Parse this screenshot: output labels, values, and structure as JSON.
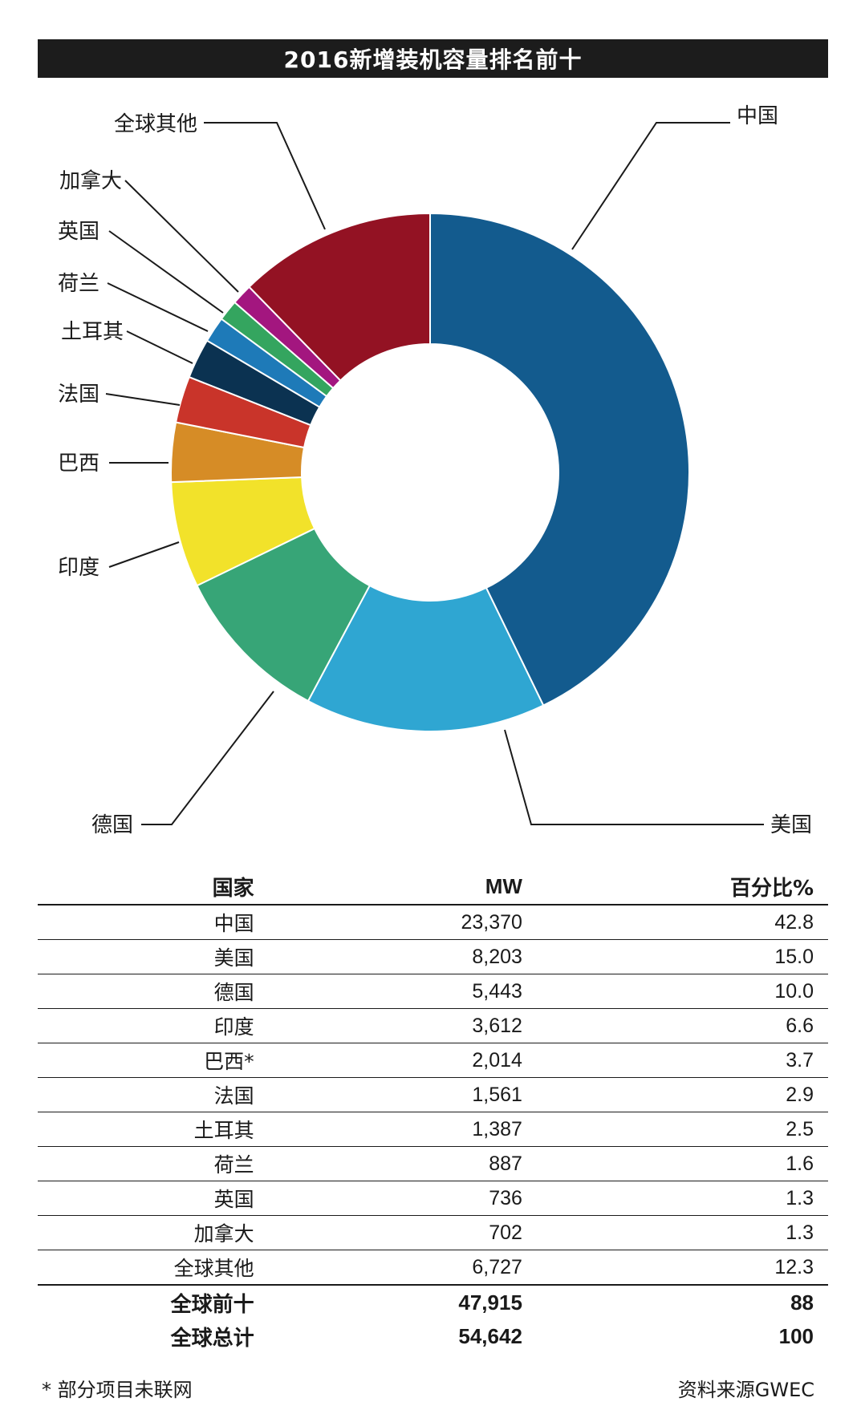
{
  "chart_data": {
    "type": "pie",
    "title": "2016新增装机容量排名前十",
    "table_headers": [
      "国家",
      "MW",
      "百分比%"
    ],
    "slices": [
      {
        "label": "中国",
        "table_label": "中国",
        "mw": "23,370",
        "pct": 42.8,
        "pct_text": "42.8",
        "color": "#135b8e"
      },
      {
        "label": "美国",
        "table_label": "美国",
        "mw": "8,203",
        "pct": 15.0,
        "pct_text": "15.0",
        "color": "#2fa6d2"
      },
      {
        "label": "德国",
        "table_label": "德国",
        "mw": "5,443",
        "pct": 10.0,
        "pct_text": "10.0",
        "color": "#37a577"
      },
      {
        "label": "印度",
        "table_label": "印度",
        "mw": "3,612",
        "pct": 6.6,
        "pct_text": "6.6",
        "color": "#f2e22a"
      },
      {
        "label": "巴西",
        "table_label": "巴西*",
        "mw": "2,014",
        "pct": 3.7,
        "pct_text": "3.7",
        "color": "#d68c26"
      },
      {
        "label": "法国",
        "table_label": "法国",
        "mw": "1,561",
        "pct": 2.9,
        "pct_text": "2.9",
        "color": "#c9342a"
      },
      {
        "label": "土耳其",
        "table_label": "土耳其",
        "mw": "1,387",
        "pct": 2.5,
        "pct_text": "2.5",
        "color": "#0b3251"
      },
      {
        "label": "荷兰",
        "table_label": "荷兰",
        "mw": "887",
        "pct": 1.6,
        "pct_text": "1.6",
        "color": "#1e7ab8"
      },
      {
        "label": "英国",
        "table_label": "英国",
        "mw": "736",
        "pct": 1.3,
        "pct_text": "1.3",
        "color": "#34a55f"
      },
      {
        "label": "加拿大",
        "table_label": "加拿大",
        "mw": "702",
        "pct": 1.3,
        "pct_text": "1.3",
        "color": "#a3167f"
      },
      {
        "label": "全球其他",
        "table_label": "全球其他",
        "mw": "6,727",
        "pct": 12.3,
        "pct_text": "12.3",
        "color": "#931223"
      }
    ],
    "summary_rows": [
      {
        "label": "全球前十",
        "mw": "47,915",
        "pct": "88"
      },
      {
        "label": "全球总计",
        "mw": "54,642",
        "pct": "100"
      }
    ]
  },
  "footnote": "* 部分项目未联网",
  "source": "资料来源GWEC"
}
